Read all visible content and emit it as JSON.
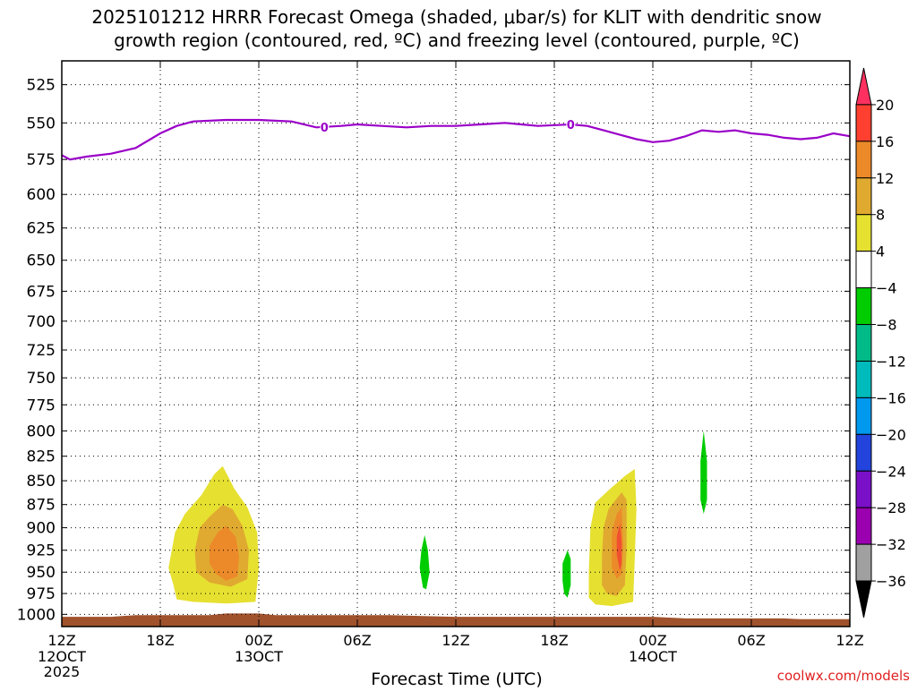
{
  "title_line1": "2025101212 HRRR Forecast Omega (shaded, μbar/s) for KLIT with dendritic snow",
  "title_line2": "growth region (contoured, red, ºC) and freezing level (contoured, purple, ºC)",
  "xlabel": "Forecast Time (UTC)",
  "credit": "coolwx.com/models",
  "chart_data": {
    "type": "time-height",
    "x_unit": "hours since 2025-10-12 12Z",
    "xlim": [
      0,
      48
    ],
    "ylim": [
      1015,
      510
    ],
    "y_ticks": [
      525,
      550,
      575,
      600,
      625,
      650,
      675,
      700,
      725,
      750,
      775,
      800,
      825,
      850,
      875,
      900,
      925,
      950,
      975,
      1000
    ],
    "x_ticks": [
      {
        "h": 0,
        "label": "12Z",
        "sub": "12OCT",
        "sub2": "2025"
      },
      {
        "h": 6,
        "label": "18Z",
        "sub": "",
        "sub2": ""
      },
      {
        "h": 12,
        "label": "00Z",
        "sub": "13OCT",
        "sub2": ""
      },
      {
        "h": 18,
        "label": "06Z",
        "sub": "",
        "sub2": ""
      },
      {
        "h": 24,
        "label": "12Z",
        "sub": "",
        "sub2": ""
      },
      {
        "h": 30,
        "label": "18Z",
        "sub": "",
        "sub2": ""
      },
      {
        "h": 36,
        "label": "00Z",
        "sub": "14OCT",
        "sub2": ""
      },
      {
        "h": 42,
        "label": "06Z",
        "sub": "",
        "sub2": ""
      },
      {
        "h": 48,
        "label": "12Z",
        "sub": "",
        "sub2": ""
      }
    ],
    "grid": true,
    "freezing_level": {
      "color": "#9a00c8",
      "label": "0",
      "label_hours": [
        16,
        31
      ],
      "points": [
        [
          0,
          572
        ],
        [
          0.5,
          575
        ],
        [
          1.5,
          573
        ],
        [
          3,
          571
        ],
        [
          4.5,
          567
        ],
        [
          6,
          557
        ],
        [
          7,
          552
        ],
        [
          8,
          549
        ],
        [
          10,
          548
        ],
        [
          12,
          548
        ],
        [
          14,
          549
        ],
        [
          15.5,
          553
        ],
        [
          17,
          552
        ],
        [
          18,
          551
        ],
        [
          19.5,
          552
        ],
        [
          21,
          553
        ],
        [
          22.5,
          552
        ],
        [
          24,
          552
        ],
        [
          25.5,
          551
        ],
        [
          27,
          550
        ],
        [
          28,
          551
        ],
        [
          29,
          552
        ],
        [
          31,
          551
        ],
        [
          32,
          552
        ],
        [
          33,
          555
        ],
        [
          34,
          558
        ],
        [
          35,
          561
        ],
        [
          36,
          563
        ],
        [
          37,
          562
        ],
        [
          38,
          559
        ],
        [
          39,
          555
        ],
        [
          40,
          556
        ],
        [
          41,
          555
        ],
        [
          42,
          557
        ],
        [
          43,
          558
        ],
        [
          44,
          560
        ],
        [
          45,
          561
        ],
        [
          46,
          560
        ],
        [
          47,
          557
        ],
        [
          48,
          559
        ]
      ]
    },
    "omega_regions": [
      {
        "level": "4-8",
        "color": "#e6e030",
        "points": [
          [
            6.8,
            965
          ],
          [
            6.5,
            945
          ],
          [
            6.9,
            905
          ],
          [
            7.5,
            885
          ],
          [
            8.5,
            865
          ],
          [
            9.3,
            843
          ],
          [
            9.8,
            835
          ],
          [
            10.5,
            858
          ],
          [
            11.3,
            878
          ],
          [
            11.9,
            905
          ],
          [
            12,
            945
          ],
          [
            11.8,
            985
          ],
          [
            10,
            987
          ],
          [
            8,
            985
          ],
          [
            7,
            982
          ]
        ]
      },
      {
        "level": "8-12",
        "color": "#e0aa30",
        "points": [
          [
            8.2,
            950
          ],
          [
            8.1,
            925
          ],
          [
            8.4,
            900
          ],
          [
            9,
            888
          ],
          [
            9.8,
            875
          ],
          [
            10.4,
            880
          ],
          [
            11,
            898
          ],
          [
            11.4,
            925
          ],
          [
            11.3,
            958
          ],
          [
            10.3,
            967
          ],
          [
            9,
            962
          ]
        ]
      },
      {
        "level": "12-16",
        "color": "#ec8a2a",
        "points": [
          [
            9,
            940
          ],
          [
            9,
            920
          ],
          [
            9.5,
            905
          ],
          [
            10,
            898
          ],
          [
            10.6,
            910
          ],
          [
            10.8,
            932
          ],
          [
            10.7,
            955
          ],
          [
            10,
            960
          ],
          [
            9.4,
            952
          ]
        ]
      },
      {
        "level": "4-8",
        "color": "#e6e030",
        "points": [
          [
            32.1,
            980
          ],
          [
            32.1,
            950
          ],
          [
            32.2,
            900
          ],
          [
            32.5,
            873
          ],
          [
            33.3,
            860
          ],
          [
            34.3,
            845
          ],
          [
            34.9,
            838
          ],
          [
            35,
            880
          ],
          [
            34.9,
            935
          ],
          [
            34.8,
            985
          ],
          [
            33.5,
            990
          ],
          [
            32.5,
            988
          ]
        ]
      },
      {
        "level": "8-12",
        "color": "#e0aa30",
        "points": [
          [
            32.9,
            965
          ],
          [
            32.9,
            930
          ],
          [
            33,
            900
          ],
          [
            33.3,
            880
          ],
          [
            34.1,
            862
          ],
          [
            34.4,
            870
          ],
          [
            34.4,
            925
          ],
          [
            34.3,
            965
          ],
          [
            33.8,
            978
          ],
          [
            33.2,
            975
          ]
        ]
      },
      {
        "level": "12-16",
        "color": "#ec8a2a",
        "points": [
          [
            33.5,
            945
          ],
          [
            33.5,
            905
          ],
          [
            33.8,
            885
          ],
          [
            34.1,
            878
          ],
          [
            34.2,
            920
          ],
          [
            34.1,
            952
          ],
          [
            33.8,
            958
          ]
        ]
      },
      {
        "level": "16-20",
        "color": "#f05030",
        "points": [
          [
            33.8,
            930
          ],
          [
            33.8,
            910
          ],
          [
            34,
            895
          ],
          [
            34.1,
            915
          ],
          [
            34.1,
            940
          ],
          [
            34,
            948
          ]
        ]
      },
      {
        "level": "-4 to -8",
        "color": "#00cc00",
        "points": [
          [
            21.8,
            945
          ],
          [
            21.9,
            925
          ],
          [
            22.1,
            908
          ],
          [
            22.3,
            925
          ],
          [
            22.4,
            950
          ],
          [
            22.2,
            970
          ],
          [
            22,
            968
          ]
        ]
      },
      {
        "level": "-4 to -8",
        "color": "#00cc00",
        "points": [
          [
            30.5,
            960
          ],
          [
            30.5,
            940
          ],
          [
            30.8,
            925
          ],
          [
            31,
            935
          ],
          [
            31,
            965
          ],
          [
            30.8,
            980
          ],
          [
            30.6,
            975
          ]
        ]
      },
      {
        "level": "-4 to -8",
        "color": "#00cc00",
        "points": [
          [
            38.9,
            850
          ],
          [
            38.9,
            830
          ],
          [
            39.1,
            800
          ],
          [
            39.3,
            830
          ],
          [
            39.3,
            870
          ],
          [
            39.1,
            885
          ],
          [
            38.9,
            870
          ]
        ]
      }
    ],
    "surface": {
      "color": "#a0522d",
      "points": [
        [
          0,
          1003
        ],
        [
          3,
          1003
        ],
        [
          4.5,
          1001
        ],
        [
          9,
          1001
        ],
        [
          10,
          999
        ],
        [
          12,
          999
        ],
        [
          13,
          1001
        ],
        [
          20,
          1001
        ],
        [
          22,
          1002
        ],
        [
          24,
          1003
        ],
        [
          36,
          1003
        ],
        [
          38,
          1005
        ],
        [
          44,
          1005
        ],
        [
          45,
          1006
        ],
        [
          48,
          1006
        ]
      ]
    },
    "colorbar": {
      "labels": [
        "20",
        "16",
        "12",
        "8",
        "4",
        "-4",
        "-8",
        "-12",
        "-16",
        "-20",
        "-24",
        "-28",
        "-32",
        "-36"
      ],
      "bins": [
        {
          "color": "#ff3060",
          "cap": "top"
        },
        {
          "color": "#ff4030"
        },
        {
          "color": "#ec8a2a"
        },
        {
          "color": "#e0aa30"
        },
        {
          "color": "#e6e030"
        },
        {
          "color": "#ffffff"
        },
        {
          "color": "#00cc00"
        },
        {
          "color": "#00bb88"
        },
        {
          "color": "#00bbbb"
        },
        {
          "color": "#0099ee"
        },
        {
          "color": "#2244dd"
        },
        {
          "color": "#7a10c8"
        },
        {
          "color": "#9a00b0"
        },
        {
          "color": "#a0a0a0"
        },
        {
          "color": "#000000",
          "cap": "bottom"
        }
      ]
    }
  }
}
